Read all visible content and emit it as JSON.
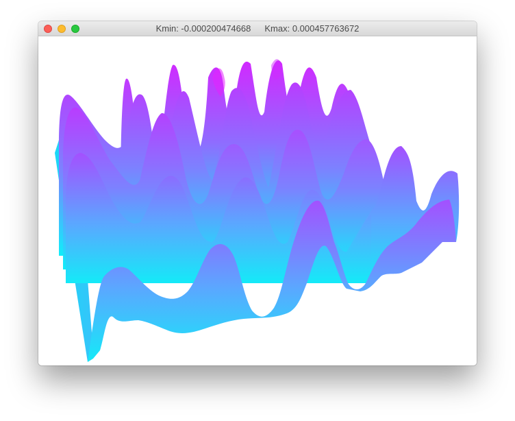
{
  "window": {
    "kmin_text": "Kmin: -0.000200474668",
    "kmax_text": "Kmax: 0.000457763672"
  },
  "traffic_lights": [
    "close",
    "minimize",
    "zoom"
  ],
  "colors": {
    "surface_low": "#10eefa",
    "surface_high": "#e020ff",
    "surface_mid": "#a45cff",
    "background": "#ffffff",
    "close": "#fc5f57",
    "minimize": "#fdbc2e",
    "zoom": "#29c840"
  },
  "plot": {
    "type": "3d-surface",
    "kmin": -0.000200474668,
    "kmax": 0.000457763672
  }
}
